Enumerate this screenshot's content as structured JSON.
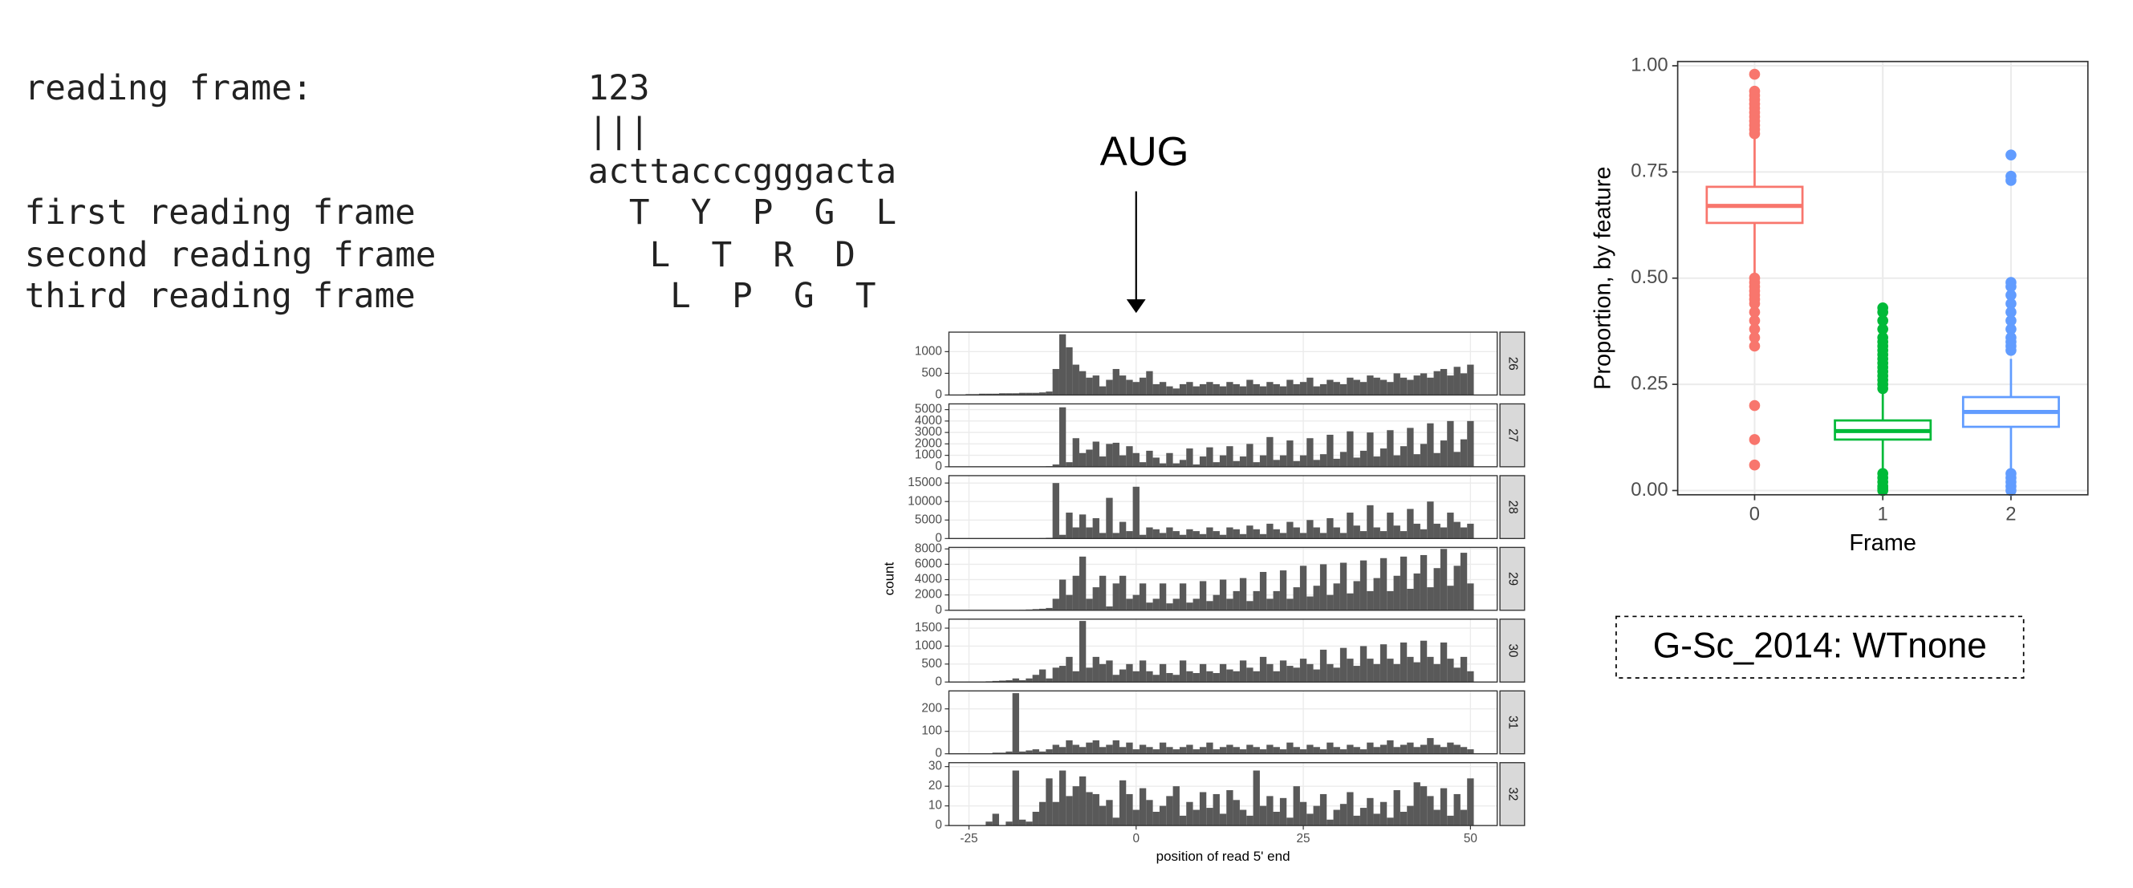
{
  "reading_frame": {
    "rows": [
      {
        "left": "reading frame:",
        "right": "123"
      },
      {
        "right": "|||"
      },
      {
        "right": "acttacccgggacta"
      },
      {
        "left": "first reading frame",
        "right": "  T  Y  P  G  L"
      },
      {
        "left": "second reading frame",
        "right": "   L  T  R  D"
      },
      {
        "left": "third reading frame",
        "right": "    L  P  G  T"
      }
    ]
  },
  "label_box": "G-Sc_2014: WTnone",
  "chart_data": [
    {
      "type": "faceted_histogram",
      "annotation": {
        "text": "AUG",
        "x": 0
      },
      "xlabel": "position of read 5' end",
      "ylabel": "count",
      "xlim": [
        -28,
        54
      ],
      "xticks": [
        -25,
        0,
        25,
        50
      ],
      "color": "#595959",
      "grid": true,
      "x": [
        -25,
        -24,
        -23,
        -22,
        -21,
        -20,
        -19,
        -18,
        -17,
        -16,
        -15,
        -14,
        -13,
        -12,
        -11,
        -10,
        -9,
        -8,
        -7,
        -6,
        -5,
        -4,
        -3,
        -2,
        -1,
        0,
        1,
        2,
        3,
        4,
        5,
        6,
        7,
        8,
        9,
        10,
        11,
        12,
        13,
        14,
        15,
        16,
        17,
        18,
        19,
        20,
        21,
        22,
        23,
        24,
        25,
        26,
        27,
        28,
        29,
        30,
        31,
        32,
        33,
        34,
        35,
        36,
        37,
        38,
        39,
        40,
        41,
        42,
        43,
        44,
        45,
        46,
        47,
        48,
        49,
        50
      ],
      "series": [
        {
          "name": "26",
          "ylim": [
            0,
            1450
          ],
          "yticks": [
            0,
            500,
            1000
          ],
          "values": [
            20,
            20,
            30,
            30,
            30,
            40,
            40,
            40,
            50,
            50,
            50,
            60,
            80,
            600,
            1400,
            1100,
            700,
            550,
            400,
            450,
            200,
            350,
            600,
            450,
            350,
            300,
            400,
            550,
            250,
            300,
            200,
            150,
            250,
            300,
            200,
            250,
            300,
            250,
            200,
            300,
            250,
            200,
            350,
            250,
            200,
            300,
            250,
            200,
            350,
            250,
            300,
            400,
            200,
            250,
            350,
            300,
            250,
            400,
            350,
            300,
            450,
            400,
            350,
            300,
            500,
            400,
            350,
            450,
            500,
            400,
            550,
            600,
            450,
            650,
            500,
            700
          ]
        },
        {
          "name": "27",
          "ylim": [
            0,
            5500
          ],
          "yticks": [
            0,
            1000,
            2000,
            3000,
            4000,
            5000
          ],
          "values": [
            0,
            0,
            0,
            0,
            0,
            0,
            0,
            0,
            0,
            0,
            20,
            30,
            50,
            200,
            5200,
            400,
            2500,
            1200,
            1500,
            2200,
            900,
            2000,
            2100,
            1000,
            1800,
            1200,
            400,
            1400,
            800,
            300,
            1200,
            300,
            600,
            1600,
            200,
            900,
            1700,
            400,
            1000,
            1800,
            500,
            900,
            2000,
            400,
            1000,
            2600,
            600,
            1000,
            2300,
            500,
            1000,
            2500,
            600,
            1100,
            2800,
            700,
            1300,
            3100,
            800,
            1400,
            3000,
            900,
            1600,
            3200,
            1000,
            1800,
            3400,
            1100,
            2000,
            3800,
            1200,
            2300,
            4000,
            1300,
            2400,
            4000
          ]
        },
        {
          "name": "28",
          "ylim": [
            0,
            17000
          ],
          "yticks": [
            0,
            5000,
            10000,
            15000
          ],
          "values": [
            0,
            0,
            0,
            0,
            0,
            0,
            0,
            0,
            0,
            0,
            0,
            100,
            200,
            15000,
            1000,
            7000,
            3000,
            6500,
            3000,
            5500,
            1500,
            11000,
            1500,
            4500,
            2000,
            14000,
            1000,
            3000,
            2500,
            1500,
            3000,
            2000,
            1000,
            2500,
            2000,
            1200,
            3000,
            2000,
            1000,
            3000,
            2500,
            1200,
            3500,
            2500,
            1200,
            4000,
            2500,
            1500,
            4500,
            3000,
            1500,
            5000,
            3000,
            1500,
            5500,
            3000,
            1500,
            7000,
            3500,
            2000,
            9000,
            3000,
            2000,
            7000,
            3500,
            2000,
            8000,
            4000,
            2500,
            10000,
            4000,
            3000,
            7000,
            4500,
            3000,
            4000
          ]
        },
        {
          "name": "29",
          "ylim": [
            0,
            8200
          ],
          "yticks": [
            0,
            2000,
            4000,
            6000,
            8000
          ],
          "values": [
            0,
            0,
            0,
            0,
            0,
            0,
            0,
            0,
            50,
            100,
            150,
            200,
            300,
            1500,
            4000,
            2000,
            4500,
            7000,
            1500,
            3000,
            4500,
            500,
            3500,
            4500,
            1500,
            2000,
            3500,
            1000,
            1500,
            3500,
            900,
            1500,
            3500,
            1000,
            1500,
            3800,
            1200,
            2000,
            4000,
            1500,
            2500,
            4200,
            1200,
            2500,
            5000,
            1500,
            2500,
            5200,
            1500,
            3000,
            5800,
            1800,
            3200,
            6000,
            2000,
            3500,
            6200,
            2200,
            3800,
            6500,
            2500,
            4200,
            6800,
            2500,
            4500,
            7000,
            2800,
            4800,
            7200,
            3000,
            5500,
            8000,
            3200,
            5800,
            7500,
            3500
          ]
        },
        {
          "name": "30",
          "ylim": [
            0,
            1750
          ],
          "yticks": [
            0,
            500,
            1000,
            1500
          ],
          "values": [
            10,
            10,
            10,
            20,
            30,
            40,
            50,
            100,
            50,
            100,
            200,
            350,
            100,
            400,
            450,
            700,
            300,
            1700,
            400,
            700,
            500,
            600,
            200,
            350,
            500,
            300,
            600,
            300,
            200,
            500,
            250,
            200,
            600,
            300,
            250,
            500,
            300,
            250,
            500,
            350,
            300,
            600,
            400,
            300,
            700,
            500,
            300,
            600,
            450,
            400,
            650,
            500,
            350,
            900,
            500,
            400,
            950,
            650,
            450,
            1000,
            650,
            500,
            1050,
            650,
            500,
            1100,
            700,
            550,
            1150,
            700,
            500,
            1100,
            650,
            400,
            700,
            300
          ]
        },
        {
          "name": "31",
          "ylim": [
            0,
            280
          ],
          "yticks": [
            0,
            100,
            200
          ],
          "values": [
            0,
            0,
            0,
            0,
            5,
            5,
            10,
            270,
            10,
            15,
            20,
            10,
            20,
            40,
            30,
            60,
            40,
            30,
            50,
            60,
            30,
            40,
            60,
            30,
            50,
            20,
            40,
            30,
            20,
            50,
            30,
            20,
            30,
            40,
            20,
            30,
            50,
            20,
            30,
            40,
            30,
            20,
            40,
            30,
            20,
            40,
            30,
            20,
            50,
            30,
            20,
            40,
            30,
            20,
            50,
            30,
            20,
            40,
            30,
            20,
            50,
            30,
            40,
            60,
            30,
            40,
            50,
            30,
            40,
            70,
            40,
            30,
            50,
            40,
            30,
            20
          ]
        },
        {
          "name": "32",
          "ylim": [
            0,
            32
          ],
          "yticks": [
            0,
            10,
            20,
            30
          ],
          "values": [
            0,
            0,
            0,
            2,
            6,
            0,
            2,
            28,
            3,
            2,
            7,
            12,
            24,
            12,
            28,
            15,
            20,
            25,
            17,
            16,
            10,
            13,
            4,
            23,
            16,
            8,
            19,
            13,
            7,
            10,
            15,
            20,
            5,
            12,
            8,
            17,
            9,
            16,
            6,
            18,
            13,
            8,
            5,
            28,
            10,
            15,
            7,
            14,
            4,
            20,
            12,
            6,
            10,
            16,
            3,
            8,
            11,
            17,
            5,
            9,
            14,
            6,
            12,
            4,
            18,
            7,
            10,
            22,
            20,
            15,
            8,
            19,
            5,
            16,
            8,
            24
          ]
        }
      ]
    },
    {
      "type": "box",
      "xlabel": "Frame",
      "ylabel": "Proportion, by feature",
      "ylim": [
        -0.01,
        1.01
      ],
      "yticks": [
        {
          "value": 0,
          "label": "0.00"
        },
        {
          "value": 0.25,
          "label": "0.25"
        },
        {
          "value": 0.5,
          "label": "0.50"
        },
        {
          "value": 0.75,
          "label": "0.75"
        },
        {
          "value": 1,
          "label": "1.00"
        }
      ],
      "grid": true,
      "categories": [
        "0",
        "1",
        "2"
      ],
      "boxes": [
        {
          "color": "#F8766D",
          "q1": 0.63,
          "median": 0.67,
          "q3": 0.715,
          "whisker_low": 0.51,
          "whisker_high": 0.83,
          "outliers": [
            0.98,
            0.94,
            0.93,
            0.92,
            0.91,
            0.9,
            0.89,
            0.88,
            0.87,
            0.86,
            0.85,
            0.84,
            0.5,
            0.49,
            0.48,
            0.47,
            0.46,
            0.45,
            0.44,
            0.42,
            0.4,
            0.38,
            0.36,
            0.34,
            0.2,
            0.12,
            0.06
          ]
        },
        {
          "color": "#00BA38",
          "q1": 0.12,
          "median": 0.14,
          "q3": 0.165,
          "whisker_low": 0.05,
          "whisker_high": 0.23,
          "outliers": [
            0.43,
            0.42,
            0.4,
            0.38,
            0.36,
            0.35,
            0.34,
            0.33,
            0.32,
            0.31,
            0.3,
            0.29,
            0.28,
            0.27,
            0.26,
            0.25,
            0.24,
            0.04,
            0.03,
            0.02,
            0.01,
            0.005,
            0
          ]
        },
        {
          "color": "#619CFF",
          "q1": 0.15,
          "median": 0.185,
          "q3": 0.22,
          "whisker_low": 0.05,
          "whisker_high": 0.31,
          "outliers": [
            0.79,
            0.74,
            0.73,
            0.49,
            0.48,
            0.46,
            0.44,
            0.42,
            0.4,
            0.38,
            0.36,
            0.35,
            0.34,
            0.33,
            0.04,
            0.03,
            0.02,
            0.01,
            0
          ]
        }
      ]
    }
  ]
}
